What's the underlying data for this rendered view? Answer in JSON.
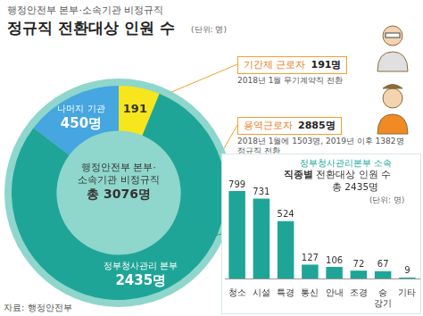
{
  "title": "정규직 전환대상 인원 수",
  "subtitle": "행정안전부 본부·소속기관 비정규직",
  "unit": "(단위: 명)",
  "source": "자료: 행정안전부",
  "callouts": [
    {
      "label": "기간제 근로자",
      "count": "191명",
      "note": [
        "2018년 1월 무기계약직 전환"
      ]
    },
    {
      "label": "용역근로자",
      "count": "2885명",
      "note": [
        "2018년 1월에 1503명, 2019년 이후 1382명",
        "정규직 전환"
      ]
    }
  ],
  "chart_data": [
    {
      "type": "doughnut",
      "center_text": [
        "행정안전부 본부·",
        "소속기관 비정규직"
      ],
      "center_total": "총 3076명",
      "categories": [
        null,
        "정부청사관리 본부",
        "나머지 기관"
      ],
      "values": [
        191,
        2435,
        450
      ],
      "value_labels": [
        "191",
        "2435명",
        "450명"
      ],
      "colors": [
        "#f7e51d",
        "#1fa597",
        "#45a6e0"
      ],
      "data_labels": true
    },
    {
      "type": "bar",
      "title": "정부청사관리본부 소속",
      "subtitle": "직종별 전환대상 인원 수",
      "total": "총 2435명",
      "unit": "(단위: 명)",
      "categories": [
        "청소",
        "시설",
        "특경",
        "통신",
        "안내",
        "조경",
        "승강기",
        "기타"
      ],
      "values": [
        799,
        731,
        524,
        127,
        106,
        72,
        67,
        9
      ],
      "color": "#1fa597",
      "ylim": [
        0,
        800
      ],
      "data_labels": true,
      "tick_labels": "x",
      "grid": false
    }
  ]
}
